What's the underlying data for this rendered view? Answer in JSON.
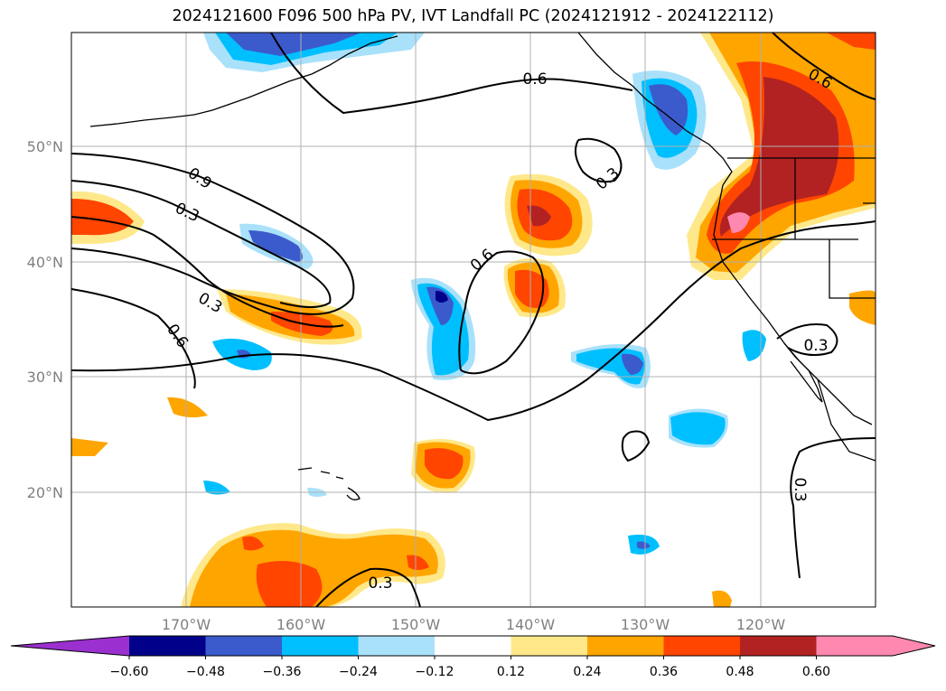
{
  "title": "2024121600 F096 500 hPa PV, IVT Landfall PC (2024121912 - 2024122112)",
  "map": {
    "lon_labels": [
      "170°W",
      "160°W",
      "150°W",
      "140°W",
      "130°W",
      "120°W"
    ],
    "lat_labels": [
      "50°N",
      "40°N",
      "30°N",
      "20°N"
    ],
    "contour_labels": [
      "0.6",
      "0.6",
      "0.9",
      "0.3",
      "0.3",
      "0.6",
      "0.3",
      "0.6",
      "0.3",
      "0.3",
      "0.3"
    ],
    "gridlines": true,
    "fill_colors": {
      "neg_extreme": "#9b30d0",
      "neg_060": "#00008b",
      "neg_048": "#3b5bcc",
      "neg_036": "#00bfff",
      "neg_024": "#a9e1fb",
      "pos_012": "#ffe88a",
      "pos_024": "#ffa500",
      "pos_036": "#ff4500",
      "pos_048": "#b22222",
      "pos_060": "#ff88b0"
    }
  },
  "colorbar": {
    "ticks": [
      "−0.60",
      "−0.48",
      "−0.36",
      "−0.24",
      "−0.12",
      "0.12",
      "0.24",
      "0.36",
      "0.48",
      "0.60"
    ],
    "colors": [
      "#9b30d0",
      "#00008b",
      "#3b5bcc",
      "#00bfff",
      "#a9e1fb",
      "#ffffff",
      "#ffe88a",
      "#ffa500",
      "#ff4500",
      "#b22222",
      "#ff88b0",
      "#ff88b0"
    ],
    "extend": "both"
  }
}
